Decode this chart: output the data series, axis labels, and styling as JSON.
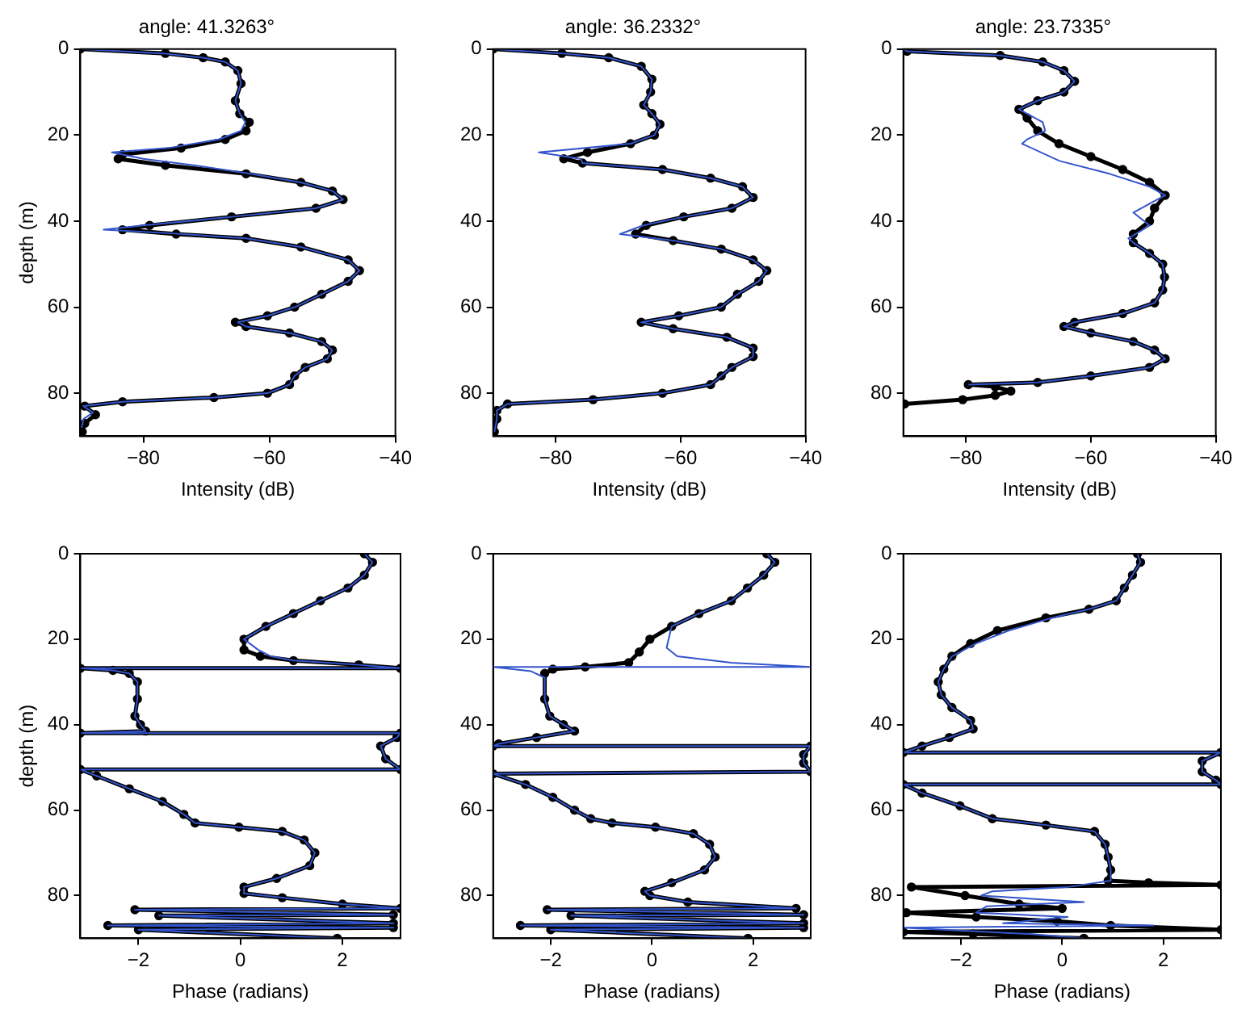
{
  "chart_data": [
    {
      "type": "line",
      "title": "angle: 41.3263°",
      "xlabel": "Intensity (dB)",
      "ylabel": "depth (m)",
      "xlim": [
        -90,
        -40
      ],
      "xticks": [
        -80,
        -60,
        -40
      ],
      "ylim": [
        90,
        0
      ],
      "yticks": [
        0,
        20,
        40,
        60,
        80
      ],
      "series": [
        {
          "color": "#000000",
          "marker": "circle",
          "x": [
            -90,
            -76.5,
            -70.5,
            -67,
            -65,
            -64.5,
            -65.4,
            -64.7,
            -63.2,
            -63.7,
            -67,
            -74,
            -83.3,
            -84,
            -76.5,
            -63.7,
            -55,
            -50,
            -48.3,
            -52.6,
            -66,
            -79,
            -83.3,
            -74.8,
            -63.7,
            -55,
            -47.5,
            -45.7,
            -47.5,
            -51.7,
            -56,
            -60.3,
            -65.4,
            -63.7,
            -56.8,
            -51.7,
            -50,
            -50.8,
            -54.3,
            -56,
            -56.8,
            -60.3,
            -68.8,
            -83.3,
            -89.3,
            -87.6,
            -89.3,
            -89.7
          ],
          "values": [
            0,
            1,
            2,
            3,
            5,
            8,
            12,
            15,
            17,
            19,
            21,
            23,
            24.5,
            25.5,
            27,
            29,
            31,
            33,
            35,
            37,
            39,
            41,
            42,
            43,
            44,
            46,
            49,
            51.5,
            54,
            57,
            60,
            62,
            63.5,
            64.5,
            66,
            68,
            70,
            72,
            74,
            76,
            78,
            80,
            81,
            82,
            83,
            85,
            87,
            89
          ]
        },
        {
          "color": "#3355cc",
          "marker": "none",
          "x": [
            -90,
            -77,
            -70.5,
            -67,
            -65,
            -64.5,
            -65.4,
            -64.7,
            -63.8,
            -64.5,
            -68,
            -76,
            -85,
            -80,
            -72,
            -63,
            -55,
            -50,
            -48.3,
            -52.6,
            -66,
            -80,
            -86.3,
            -76,
            -63.7,
            -55,
            -47.5,
            -45.7,
            -47.5,
            -51.7,
            -56,
            -60.3,
            -65,
            -63.7,
            -56.8,
            -51.7,
            -50,
            -50.8,
            -54.3,
            -56,
            -56.8,
            -60.3,
            -68.8,
            -83.3,
            -89.5,
            -88,
            -89.5,
            -89.8
          ],
          "values": [
            0,
            1,
            2,
            3,
            5,
            8,
            12,
            15,
            17,
            19,
            21,
            23,
            24,
            25.5,
            27,
            29,
            31,
            33,
            35,
            37,
            39,
            41,
            42,
            42.8,
            44,
            46,
            49,
            51.5,
            54,
            57,
            60,
            62,
            63.5,
            64.5,
            66,
            68,
            70,
            72,
            74,
            76,
            78,
            80,
            81,
            82,
            83,
            84.5,
            86,
            88
          ]
        }
      ]
    },
    {
      "type": "line",
      "title": "angle: 36.2332°",
      "xlabel": "Intensity (dB)",
      "xlim": [
        -90,
        -40
      ],
      "xticks": [
        -80,
        -60,
        -40
      ],
      "ylim": [
        90,
        0
      ],
      "yticks": [
        0,
        20,
        40,
        60,
        80
      ],
      "series": [
        {
          "color": "#000000",
          "marker": "circle",
          "x": [
            -90,
            -79,
            -71.5,
            -66.3,
            -64.6,
            -64.8,
            -65.9,
            -64.6,
            -63.3,
            -64.2,
            -68,
            -74.9,
            -78.7,
            -75.7,
            -62.9,
            -55.2,
            -50.1,
            -48.4,
            -51.8,
            -59.5,
            -65.5,
            -67.2,
            -61.2,
            -53.5,
            -48.4,
            -46.2,
            -47.5,
            -50.9,
            -53.5,
            -60.3,
            -66.3,
            -61.2,
            -52.6,
            -48.4,
            -48.4,
            -51.8,
            -53.5,
            -55.2,
            -62.9,
            -74,
            -87.7,
            -89.4,
            -89.4,
            -89.8
          ],
          "values": [
            0,
            1,
            2,
            4,
            7,
            10,
            13,
            15,
            17.5,
            20,
            22,
            24,
            25.5,
            26.5,
            28,
            30,
            32,
            34.5,
            37,
            39,
            41,
            43,
            44.5,
            46.5,
            49,
            51.5,
            54,
            57,
            60,
            62,
            63.5,
            65,
            67,
            69.5,
            71.5,
            74,
            76,
            78,
            80,
            81.5,
            82.5,
            84,
            86,
            89
          ]
        },
        {
          "color": "#3355cc",
          "marker": "none",
          "x": [
            -90,
            -79,
            -71.5,
            -66.3,
            -64.6,
            -64.8,
            -65.9,
            -64.6,
            -63.3,
            -64.2,
            -68,
            -82.7,
            -76,
            -75.7,
            -62.9,
            -55.2,
            -50.1,
            -48.4,
            -51.8,
            -59.5,
            -66,
            -69.7,
            -61.2,
            -53.5,
            -48.4,
            -46.2,
            -47.5,
            -50.9,
            -53.5,
            -60.3,
            -66.3,
            -61.2,
            -52.6,
            -48.4,
            -48.4,
            -51.8,
            -53.5,
            -55.2,
            -62.9,
            -74,
            -87.7,
            -89.4,
            -89.4,
            -89.8
          ],
          "values": [
            0,
            1,
            2,
            4,
            7,
            10,
            13,
            15,
            17.5,
            20,
            22,
            24,
            25.5,
            26.5,
            28,
            30,
            32,
            34.5,
            37,
            39,
            41,
            43,
            44.5,
            46.5,
            49,
            51.5,
            54,
            57,
            60,
            62,
            63.5,
            65,
            67,
            69.5,
            71.5,
            74,
            76,
            78,
            80,
            81.5,
            82.5,
            84,
            86,
            89
          ]
        }
      ]
    },
    {
      "type": "line",
      "title": "angle: 23.7335°",
      "xlabel": "Intensity (dB)",
      "xlim": [
        -90,
        -40
      ],
      "xticks": [
        -80,
        -60,
        -40
      ],
      "ylim": [
        90,
        0
      ],
      "yticks": [
        0,
        20,
        40,
        60,
        80
      ],
      "series": [
        {
          "color": "#000000",
          "marker": "circle",
          "x": [
            -90,
            -89.4,
            -74.5,
            -67.7,
            -64.3,
            -62.6,
            -64.3,
            -68.5,
            -71.5,
            -70.2,
            -68.5,
            -65.1,
            -60,
            -54.9,
            -50.6,
            -48.1,
            -49.8,
            -50.6,
            -53.2,
            -53.2,
            -50.6,
            -48.5,
            -48.2,
            -48.5,
            -49.8,
            -54.9,
            -62.6,
            -64.3,
            -60,
            -53.2,
            -49.8,
            -48.1,
            -50.6,
            -60,
            -68.5,
            -79.6,
            -75.3,
            -72.8,
            -75.3,
            -80.5,
            -89.8
          ],
          "values": [
            0,
            0.5,
            1.5,
            3,
            5,
            7.5,
            10,
            12,
            14,
            16,
            19,
            22,
            25,
            28,
            31,
            34,
            37,
            40,
            43,
            45,
            47.5,
            50,
            53,
            56,
            59,
            61.5,
            63.5,
            64.5,
            66,
            68,
            70,
            72,
            74,
            76,
            77.5,
            78,
            78.5,
            79.5,
            80.5,
            81.5,
            82.5
          ]
        },
        {
          "color": "#3355cc",
          "marker": "none",
          "x": [
            -90,
            -89.4,
            -74.5,
            -67.7,
            -64.3,
            -62.6,
            -64.3,
            -68.5,
            -71.5,
            -67.7,
            -67.3,
            -70.2,
            -71,
            -65,
            -57,
            -50.6,
            -48.1,
            -53.2,
            -50.6,
            -54,
            -53.2,
            -50.6,
            -48.5,
            -48.2,
            -48.5,
            -49.8,
            -54.9,
            -62.6,
            -64.3,
            -60,
            -53.2,
            -49.8,
            -48.1,
            -50.6,
            -60,
            -68.5,
            -79.6
          ],
          "values": [
            0,
            0.5,
            1.5,
            3,
            5,
            7.5,
            10,
            12,
            14,
            17,
            19,
            21,
            22,
            26,
            29,
            32,
            34,
            38,
            41,
            44,
            45,
            47.5,
            50,
            53,
            56,
            59,
            61.5,
            63.5,
            64.5,
            66,
            68,
            70,
            72,
            74,
            76,
            77.5,
            78
          ]
        }
      ]
    },
    {
      "type": "line",
      "xlabel": "Phase (radians)",
      "ylabel": "depth (m)",
      "xlim": [
        -3.14,
        3.14
      ],
      "xticks": [
        -2,
        0,
        2
      ],
      "ylim": [
        90,
        0
      ],
      "yticks": [
        0,
        20,
        40,
        60,
        80
      ],
      "series": [
        {
          "color": "#000000",
          "marker": "circle",
          "x": [
            2.43,
            2.59,
            2.43,
            2.11,
            1.57,
            1.04,
            0.5,
            0.07,
            0.07,
            0.39,
            1.04,
            2.32,
            3.14,
            -3.14,
            -2.5,
            -2.18,
            -2.02,
            -2.02,
            -2.07,
            -1.96,
            -1.86,
            -3.14,
            3.14,
            3.07,
            2.75,
            2.85,
            3.14,
            -3.14,
            -2.82,
            -2.18,
            -1.53,
            -1.11,
            -0.89,
            -0.03,
            0.82,
            1.25,
            1.46,
            1.36,
            0.71,
            0.07,
            0.07,
            0.82,
            2,
            3.14,
            -2.07,
            3,
            -1.6,
            3,
            -2.6,
            3,
            -2,
            1.9
          ],
          "values": [
            0,
            2,
            5,
            8,
            11,
            14,
            17,
            20,
            22.5,
            24,
            25,
            26,
            26.8,
            26.8,
            27.3,
            28,
            30,
            34,
            38,
            40,
            41.5,
            42,
            42,
            43,
            45,
            48,
            50.5,
            50.5,
            52,
            55,
            58,
            61,
            63,
            64,
            65,
            67,
            70,
            73,
            76,
            78,
            79.5,
            80.5,
            82,
            83,
            83.3,
            84.5,
            84.7,
            86.5,
            87,
            87.5,
            88,
            90
          ]
        },
        {
          "color": "#3355cc",
          "marker": "none",
          "x": [
            2.43,
            2.59,
            2.43,
            2.11,
            1.57,
            1.04,
            0.5,
            0.07,
            0.35,
            0.6,
            1.04,
            2.32,
            3.14,
            -3.14,
            -2.5,
            -2.18,
            -2.02,
            -2.02,
            -2.07,
            -1.96,
            -1.86,
            -3.14,
            3.14,
            3.07,
            2.75,
            2.85,
            3.14,
            -3.14,
            -2.82,
            -2.18,
            -1.53,
            -1.11,
            -0.89,
            -0.03,
            0.82,
            1.25,
            1.46,
            1.36,
            0.71,
            0.07,
            0.07,
            0.82,
            2,
            3.14,
            -2.07,
            3,
            -1.6,
            3,
            -2.6,
            3,
            -2,
            1.9
          ],
          "values": [
            0,
            2,
            5,
            8,
            11,
            14,
            17,
            20,
            22.5,
            24,
            25,
            26,
            26.8,
            26.8,
            27.3,
            28,
            30,
            34,
            38,
            40,
            41.5,
            42,
            42,
            43,
            45,
            48,
            50.5,
            50.5,
            52,
            55,
            58,
            61,
            63,
            64,
            65,
            67,
            70,
            73,
            76,
            78,
            79.5,
            80.5,
            82,
            83,
            83.3,
            84.5,
            84.7,
            86.5,
            87,
            87.5,
            88,
            90
          ]
        }
      ]
    },
    {
      "type": "line",
      "xlabel": "Phase (radians)",
      "xlim": [
        -3.14,
        3.14
      ],
      "xticks": [
        -2,
        0,
        2
      ],
      "ylim": [
        90,
        0
      ],
      "yticks": [
        0,
        20,
        40,
        60,
        80
      ],
      "series": [
        {
          "color": "#000000",
          "marker": "circle",
          "x": [
            2.27,
            2.43,
            2.21,
            1.89,
            1.57,
            0.93,
            0.39,
            -0.04,
            -0.25,
            -0.46,
            -1.32,
            -1.96,
            -2.12,
            -2.12,
            -2.02,
            -1.75,
            -1.53,
            -2.28,
            -3.03,
            -3.14,
            3.14,
            3,
            3,
            3.14,
            -3.14,
            -2.5,
            -1.96,
            -1.53,
            -1.21,
            -0.79,
            0.07,
            0.82,
            1.14,
            1.25,
            1.04,
            0.39,
            -0.14,
            -0.04,
            0.71,
            2.85,
            -2.07,
            3,
            -1.6,
            3,
            -2.6,
            3,
            -2,
            1.9
          ],
          "values": [
            0,
            2,
            5,
            8,
            11,
            14,
            17,
            20,
            23,
            25.5,
            26.5,
            27,
            28,
            34,
            38,
            40,
            41.5,
            43,
            44.5,
            45,
            45,
            47,
            49,
            51,
            51.5,
            54,
            57,
            60,
            62,
            63,
            64,
            65.5,
            68,
            71,
            74,
            77,
            79,
            80,
            81.5,
            83,
            83.3,
            84.5,
            84.7,
            86.5,
            87,
            87.5,
            88,
            90
          ]
        },
        {
          "color": "#3355cc",
          "marker": "none",
          "x": [
            2.27,
            2.43,
            2.21,
            1.89,
            1.57,
            0.93,
            0.39,
            0.29,
            0.5,
            1.57,
            3.14,
            -3.14,
            -2.39,
            -2.12,
            -2.12,
            -2.02,
            -1.75,
            -1.53,
            -2.28,
            -3.03,
            -3.14,
            3.14,
            3,
            3,
            3.14,
            -3.14,
            -2.5,
            -1.96,
            -1.53,
            -1.21,
            -0.79,
            0.07,
            0.82,
            1.14,
            1.25,
            1.04,
            0.39,
            -0.14,
            -0.04,
            0.71,
            2.85,
            -2.07,
            3,
            -1.6,
            3,
            -2.6,
            3,
            -2,
            1.9
          ],
          "values": [
            0,
            2,
            5,
            8,
            11,
            14,
            17,
            22,
            24,
            25.5,
            26.5,
            26.5,
            27.5,
            29,
            34,
            38,
            40,
            41.5,
            43,
            44.5,
            45,
            45,
            47,
            49,
            51,
            51.5,
            54,
            57,
            60,
            62,
            63,
            64,
            65.5,
            68,
            71,
            74,
            77,
            79,
            80,
            81.5,
            83,
            83.3,
            84.5,
            84.7,
            86.5,
            87,
            87.5,
            88,
            90
          ]
        }
      ]
    },
    {
      "type": "line",
      "xlabel": "Phase (radians)",
      "xlim": [
        -3.14,
        3.14
      ],
      "xticks": [
        -2,
        0,
        2
      ],
      "ylim": [
        90,
        0
      ],
      "yticks": [
        0,
        20,
        40,
        60,
        80
      ],
      "series": [
        {
          "color": "#000000",
          "marker": "circle",
          "x": [
            1.49,
            1.55,
            1.39,
            1.23,
            1.07,
            0.53,
            -0.32,
            -1.28,
            -1.81,
            -2.18,
            -2.34,
            -2.45,
            -2.39,
            -2.18,
            -1.81,
            -1.76,
            -2.23,
            -2.77,
            -3.14,
            3.14,
            2.77,
            2.77,
            3.04,
            3.14,
            -3.14,
            -2.77,
            -2.02,
            -1.38,
            -0.32,
            0.64,
            0.85,
            0.91,
            0.96,
            0.91,
            1.71,
            3.14,
            -2.98,
            -1.92,
            -0.85,
            0,
            -3.08,
            -1.7,
            -0.1,
            0.96,
            3.14,
            -3.14,
            -1.76,
            0.43
          ],
          "values": [
            0,
            2,
            5,
            8,
            11,
            13,
            15,
            18,
            21,
            24,
            27,
            30,
            33,
            36,
            39,
            41,
            43,
            45,
            46.5,
            46.5,
            48.5,
            51,
            53,
            54,
            54,
            56,
            59,
            62,
            63.5,
            65,
            68,
            71,
            74,
            76.5,
            77,
            77.5,
            78,
            80,
            82,
            83,
            84,
            85,
            86,
            87,
            88,
            88.5,
            89,
            90
          ]
        },
        {
          "color": "#3355cc",
          "marker": "none",
          "x": [
            1.49,
            1.55,
            1.39,
            1.23,
            1.07,
            0.53,
            -0.2,
            -1.06,
            -1.7,
            -2.18,
            -2.34,
            -2.45,
            -2.39,
            -2.18,
            -1.81,
            -1.76,
            -2.23,
            -2.77,
            -3.14,
            3.14,
            2.77,
            2.77,
            3.04,
            3.14,
            -3.14,
            -2.77,
            -2.02,
            -1.38,
            -0.32,
            0.64,
            0.85,
            0.91,
            0.96,
            0.96,
            0.11,
            -1.38,
            -1.6,
            0.43,
            -1.49,
            -1.7,
            0.11,
            -1.17,
            1.81,
            -3.14,
            -0.64,
            0.43
          ],
          "values": [
            0,
            2,
            5,
            8,
            11,
            13,
            15,
            18,
            21,
            24,
            27,
            30,
            33,
            36,
            39,
            41,
            43,
            45,
            46.5,
            46.5,
            48.5,
            51,
            53,
            54,
            54,
            56,
            59,
            62,
            63.5,
            65,
            68,
            71,
            74,
            76.5,
            78,
            79,
            80,
            81.5,
            82.5,
            84,
            85,
            86.5,
            87,
            87.5,
            89,
            90
          ]
        }
      ]
    }
  ]
}
